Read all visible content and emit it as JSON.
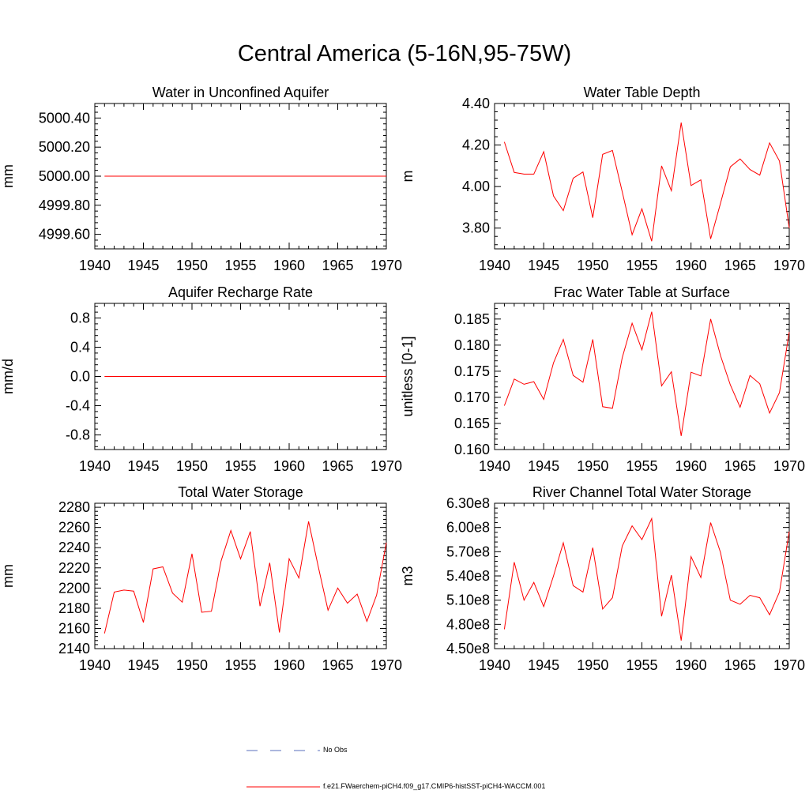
{
  "title": "Central America (5-16N,95-75W)",
  "legend": {
    "obs_label": "No Obs",
    "model_label": "f.e21.FWaerchem-piCH4.f09_g17.CMIP6-histSST-piCH4-WACCM.001",
    "obs_color": "#5a6fbd",
    "model_color": "#ff0000"
  },
  "chart_data": [
    {
      "type": "line",
      "title": "Water in Unconfined Aquifer",
      "ylabel": "mm",
      "xlim": [
        1940,
        1970
      ],
      "ylim": [
        4999.5,
        5000.5
      ],
      "xticks": [
        1940,
        1945,
        1950,
        1955,
        1960,
        1965,
        1970
      ],
      "yticks": [
        4999.6,
        4999.8,
        5000.0,
        5000.2,
        5000.4
      ],
      "ytick_labels": [
        "4999.60",
        "4999.80",
        "5000.00",
        "5000.20",
        "5000.40"
      ],
      "x": [
        1941,
        1970
      ],
      "series": [
        {
          "values": [
            5000.0,
            5000.0
          ]
        }
      ]
    },
    {
      "type": "line",
      "title": "Water Table Depth",
      "ylabel": "m",
      "xlim": [
        1940,
        1970
      ],
      "ylim": [
        3.7,
        4.4
      ],
      "xticks": [
        1940,
        1945,
        1950,
        1955,
        1960,
        1965,
        1970
      ],
      "yticks": [
        3.8,
        4.0,
        4.2,
        4.4
      ],
      "ytick_labels": [
        "3.80",
        "4.00",
        "4.20",
        "4.40"
      ],
      "x": [
        1941,
        1942,
        1943,
        1944,
        1945,
        1946,
        1947,
        1948,
        1949,
        1950,
        1951,
        1952,
        1953,
        1954,
        1955,
        1956,
        1957,
        1958,
        1959,
        1960,
        1961,
        1962,
        1963,
        1964,
        1965,
        1966,
        1967,
        1968,
        1969,
        1970
      ],
      "series": [
        {
          "values": [
            4.215,
            4.068,
            4.06,
            4.06,
            4.168,
            3.955,
            3.884,
            4.04,
            4.07,
            3.85,
            4.155,
            4.174,
            3.975,
            3.768,
            3.893,
            3.737,
            4.1,
            3.98,
            4.308,
            4.005,
            4.032,
            3.748,
            3.92,
            4.095,
            4.133,
            4.082,
            4.055,
            4.21,
            4.123,
            3.8
          ]
        }
      ]
    },
    {
      "type": "line",
      "title": "Aquifer Recharge Rate",
      "ylabel": "mm/d",
      "xlim": [
        1940,
        1970
      ],
      "ylim": [
        -1.0,
        1.0
      ],
      "xticks": [
        1940,
        1945,
        1950,
        1955,
        1960,
        1965,
        1970
      ],
      "yticks": [
        -0.8,
        -0.4,
        0.0,
        0.4,
        0.8
      ],
      "ytick_labels": [
        "-0.8",
        "-0.4",
        "0.0",
        "0.4",
        "0.8"
      ],
      "x": [
        1941,
        1970
      ],
      "series": [
        {
          "values": [
            0.0,
            0.0
          ]
        }
      ]
    },
    {
      "type": "line",
      "title": "Frac Water Table at Surface",
      "ylabel": "unitless [0-1]",
      "xlim": [
        1940,
        1970
      ],
      "ylim": [
        0.16,
        0.188
      ],
      "xticks": [
        1940,
        1945,
        1950,
        1955,
        1960,
        1965,
        1970
      ],
      "yticks": [
        0.16,
        0.165,
        0.17,
        0.175,
        0.18,
        0.185
      ],
      "ytick_labels": [
        "0.160",
        "0.165",
        "0.170",
        "0.175",
        "0.180",
        "0.185"
      ],
      "x": [
        1941,
        1942,
        1943,
        1944,
        1945,
        1946,
        1947,
        1948,
        1949,
        1950,
        1951,
        1952,
        1953,
        1954,
        1955,
        1956,
        1957,
        1958,
        1959,
        1960,
        1961,
        1962,
        1963,
        1964,
        1965,
        1966,
        1967,
        1968,
        1969,
        1970
      ],
      "series": [
        {
          "values": [
            0.1684,
            0.1735,
            0.1725,
            0.173,
            0.1696,
            0.1766,
            0.1811,
            0.1742,
            0.1729,
            0.1811,
            0.1682,
            0.1679,
            0.1776,
            0.1842,
            0.1791,
            0.1864,
            0.1722,
            0.1749,
            0.1626,
            0.1748,
            0.1741,
            0.185,
            0.178,
            0.1724,
            0.1681,
            0.1742,
            0.1726,
            0.167,
            0.1709,
            0.1825
          ]
        }
      ]
    },
    {
      "type": "line",
      "title": "Total Water Storage",
      "ylabel": "mm",
      "xlim": [
        1940,
        1970
      ],
      "ylim": [
        2140,
        2284
      ],
      "xticks": [
        1940,
        1945,
        1950,
        1955,
        1960,
        1965,
        1970
      ],
      "yticks": [
        2140,
        2160,
        2180,
        2200,
        2220,
        2240,
        2260,
        2280
      ],
      "ytick_labels": [
        "2140",
        "2160",
        "2180",
        "2200",
        "2220",
        "2240",
        "2260",
        "2280"
      ],
      "x": [
        1941,
        1942,
        1943,
        1944,
        1945,
        1946,
        1947,
        1948,
        1949,
        1950,
        1951,
        1952,
        1953,
        1954,
        1955,
        1956,
        1957,
        1958,
        1959,
        1960,
        1961,
        1962,
        1963,
        1964,
        1965,
        1966,
        1967,
        1968,
        1969,
        1970
      ],
      "series": [
        {
          "values": [
            2155,
            2196,
            2198,
            2197,
            2166,
            2219,
            2221,
            2195,
            2186,
            2234,
            2176,
            2177,
            2227,
            2257,
            2229,
            2256,
            2182,
            2225,
            2156,
            2229,
            2210,
            2266,
            2221,
            2178,
            2200,
            2185,
            2194,
            2167,
            2193,
            2245
          ]
        }
      ]
    },
    {
      "type": "line",
      "title": "River Channel Total Water Storage",
      "ylabel": "m3",
      "xlim": [
        1940,
        1970
      ],
      "ylim": [
        450000000,
        630000000
      ],
      "xticks": [
        1940,
        1945,
        1950,
        1955,
        1960,
        1965,
        1970
      ],
      "yticks": [
        450000000,
        480000000,
        510000000,
        540000000,
        570000000,
        600000000,
        630000000
      ],
      "ytick_labels": [
        "4.50e8",
        "4.80e8",
        "5.10e8",
        "5.40e8",
        "5.70e8",
        "6.00e8",
        "6.30e8"
      ],
      "x": [
        1941,
        1942,
        1943,
        1944,
        1945,
        1946,
        1947,
        1948,
        1949,
        1950,
        1951,
        1952,
        1953,
        1954,
        1955,
        1956,
        1957,
        1958,
        1959,
        1960,
        1961,
        1962,
        1963,
        1964,
        1965,
        1966,
        1967,
        1968,
        1969,
        1970
      ],
      "series": [
        {
          "values": [
            474000000,
            557000000,
            510000000,
            532000000,
            502000000,
            540000000,
            581000000,
            528000000,
            520000000,
            575000000,
            499000000,
            513000000,
            577000000,
            602000000,
            585000000,
            611000000,
            490000000,
            541000000,
            460000000,
            564000000,
            538000000,
            606000000,
            569000000,
            510000000,
            505000000,
            516000000,
            513000000,
            492000000,
            520000000,
            595000000
          ]
        }
      ]
    }
  ]
}
